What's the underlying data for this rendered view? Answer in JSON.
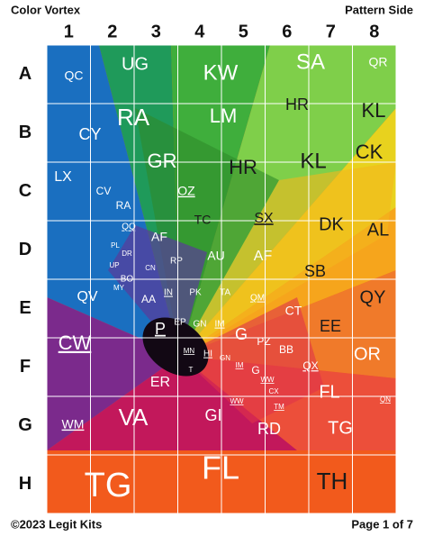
{
  "header": {
    "title": "Color Vortex",
    "side": "Pattern Side"
  },
  "columns": [
    "1",
    "2",
    "3",
    "4",
    "5",
    "6",
    "7",
    "8"
  ],
  "rows": [
    "A",
    "B",
    "C",
    "D",
    "E",
    "F",
    "G",
    "H"
  ],
  "labels": [
    "QC",
    "UG",
    "KW",
    "SA",
    "QR",
    "CY",
    "RA",
    "LM",
    "HR",
    "KL",
    "GR",
    "HR",
    "KL",
    "CK",
    "LX",
    "CV",
    "OZ",
    "RA",
    "TC",
    "SX",
    "DK",
    "AL",
    "QQ",
    "AF",
    "AU",
    "AF",
    "SB",
    "PL",
    "DR",
    "RP",
    "UP",
    "CN",
    "BO",
    "MY",
    "QV",
    "IN",
    "PK",
    "TA",
    "QM",
    "CT",
    "QY",
    "AA",
    "EP",
    "GN",
    "IM",
    "EE",
    "P",
    "G",
    "PZ",
    "CW",
    "BB",
    "OR",
    "MN",
    "HI",
    "GN",
    "QX",
    "T",
    "IM",
    "G",
    "ER",
    "WW",
    "CX",
    "FL",
    "QN",
    "TM",
    "WW",
    "GI",
    "WM",
    "VA",
    "RD",
    "TG",
    "TG",
    "FL",
    "TH"
  ],
  "footer": {
    "copyright": "©2023 Legit Kits",
    "page": "Page 1 of 7"
  }
}
